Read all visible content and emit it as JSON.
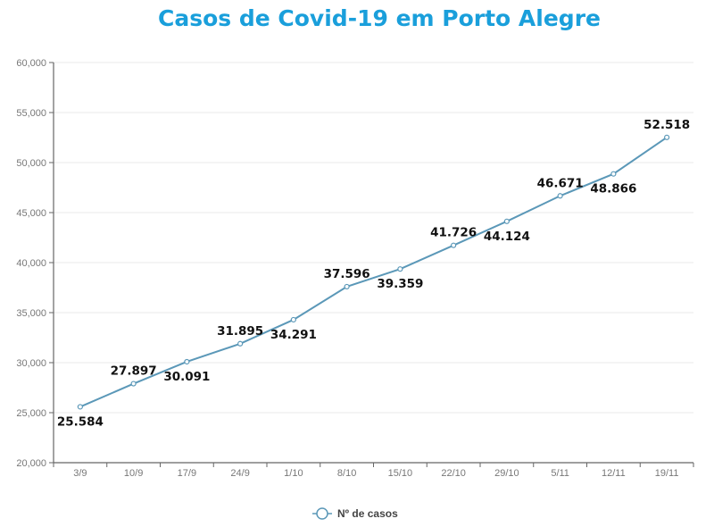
{
  "title": "Casos de Covid-19 em Porto Alegre",
  "colors": {
    "title": "#1a9fdb",
    "line": "#5b98b8",
    "grid": "#e8e8e8",
    "axis": "#666666"
  },
  "chart_data": {
    "type": "line",
    "title": "Casos de Covid-19 em Porto Alegre",
    "xlabel": "",
    "ylabel": "",
    "categories": [
      "3/9",
      "10/9",
      "17/9",
      "24/9",
      "1/10",
      "8/10",
      "15/10",
      "22/10",
      "29/10",
      "5/11",
      "12/11",
      "19/11"
    ],
    "series": [
      {
        "name": "Nº de casos",
        "values": [
          25584,
          27897,
          30091,
          31895,
          34291,
          37596,
          39359,
          41726,
          44124,
          46671,
          48866,
          52518
        ]
      }
    ],
    "data_labels": [
      "25.584",
      "27.897",
      "30.091",
      "31.895",
      "34.291",
      "37.596",
      "39.359",
      "41.726",
      "44.124",
      "46.671",
      "48.866",
      "52.518"
    ],
    "label_position": [
      "below",
      "above",
      "below",
      "above",
      "below",
      "above",
      "below",
      "above",
      "below",
      "above",
      "below",
      "above"
    ],
    "ylim": [
      20000,
      60000
    ],
    "yticks": [
      20000,
      25000,
      30000,
      35000,
      40000,
      45000,
      50000,
      55000,
      60000
    ],
    "ytick_labels": [
      "20,000",
      "25,000",
      "30,000",
      "35,000",
      "40,000",
      "45,000",
      "50,000",
      "55,000",
      "60,000"
    ],
    "grid": true,
    "legend_position": "bottom"
  },
  "legend": {
    "label": "Nº de casos"
  }
}
